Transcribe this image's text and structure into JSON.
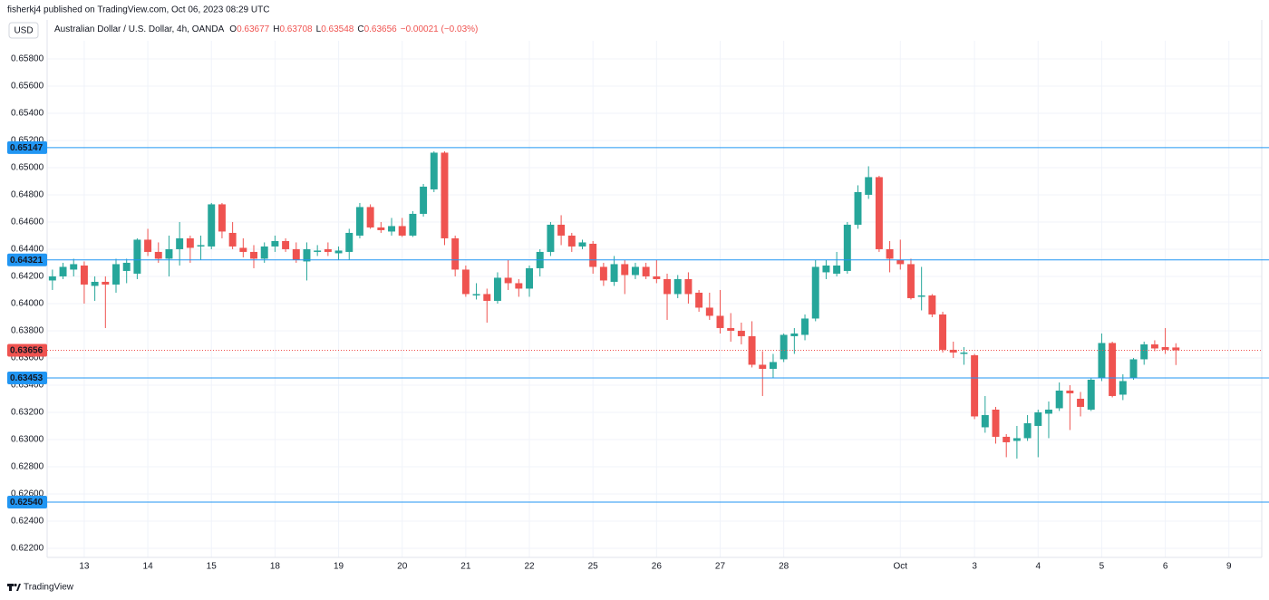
{
  "header": {
    "publisher": "fisherkj4 published on TradingView.com, Oct 06, 2023 08:29 UTC",
    "currency": "USD",
    "symbol": "Australian Dollar / U.S. Dollar, 4h, OANDA",
    "o_label": "O",
    "open": 0.63677,
    "h_label": "H",
    "high": 0.63708,
    "l_label": "L",
    "low": 0.63548,
    "c_label": "C",
    "close": 0.63656,
    "change": "−0.00021 (−0.03%)"
  },
  "footer": {
    "brand": "TradingView"
  },
  "chart_data": {
    "type": "candlestick",
    "open": [
      0.6417,
      0.642,
      0.6425,
      0.6428,
      0.6413,
      0.6416,
      0.6414,
      0.6424,
      0.6422,
      0.6447,
      0.6438,
      0.6433,
      0.644,
      0.6448,
      0.6442,
      0.6442,
      0.6473,
      0.6452,
      0.6441,
      0.6438,
      0.6433,
      0.6442,
      0.6446,
      0.644,
      0.6431,
      0.6438,
      0.644,
      0.6437,
      0.6438,
      0.645,
      0.6471,
      0.6456,
      0.6453,
      0.6457,
      0.645,
      0.6466,
      0.6484,
      0.6511,
      0.6448,
      0.6425,
      0.6406,
      0.6407,
      0.6402,
      0.6419,
      0.6415,
      0.6411,
      0.6426,
      0.6438,
      0.6458,
      0.645,
      0.6442,
      0.6444,
      0.6427,
      0.6416,
      0.6429,
      0.6421,
      0.6427,
      0.642,
      0.6418,
      0.6407,
      0.6418,
      0.6408,
      0.6397,
      0.6391,
      0.6382,
      0.638,
      0.6376,
      0.6355,
      0.6352,
      0.6359,
      0.6376,
      0.6377,
      0.6389,
      0.6423,
      0.6422,
      0.6424,
      0.6458,
      0.648,
      0.6493,
      0.644,
      0.6432,
      0.6429,
      0.6405,
      0.6406,
      0.6392,
      0.6366,
      0.6363,
      0.6362,
      0.6309,
      0.6322,
      0.6302,
      0.6299,
      0.6301,
      0.631,
      0.6319,
      0.6323,
      0.6336,
      0.633,
      0.6322,
      0.6345,
      0.6371,
      0.6333,
      0.6345,
      0.6359,
      0.637,
      0.6368,
      0.63677
    ],
    "high": [
      0.6425,
      0.643,
      0.6433,
      0.6431,
      0.642,
      0.642,
      0.6433,
      0.6433,
      0.6448,
      0.6455,
      0.6445,
      0.645,
      0.646,
      0.645,
      0.645,
      0.6474,
      0.6474,
      0.646,
      0.6448,
      0.6443,
      0.6445,
      0.645,
      0.6448,
      0.6445,
      0.6445,
      0.6443,
      0.6445,
      0.6442,
      0.6455,
      0.6474,
      0.6473,
      0.646,
      0.6463,
      0.6463,
      0.6468,
      0.6488,
      0.6512,
      0.6512,
      0.645,
      0.6428,
      0.6415,
      0.6411,
      0.6423,
      0.6432,
      0.6418,
      0.6428,
      0.644,
      0.646,
      0.6465,
      0.6452,
      0.6447,
      0.6446,
      0.643,
      0.6435,
      0.6432,
      0.643,
      0.643,
      0.6432,
      0.6422,
      0.6421,
      0.6423,
      0.641,
      0.6408,
      0.641,
      0.6393,
      0.6386,
      0.6387,
      0.6365,
      0.6363,
      0.6378,
      0.6382,
      0.6392,
      0.6432,
      0.6432,
      0.6438,
      0.646,
      0.6487,
      0.6501,
      0.6494,
      0.6446,
      0.6447,
      0.6433,
      0.6427,
      0.6407,
      0.6394,
      0.6372,
      0.6368,
      0.6363,
      0.6332,
      0.6324,
      0.6304,
      0.631,
      0.6318,
      0.6322,
      0.6328,
      0.6342,
      0.634,
      0.6335,
      0.6345,
      0.6378,
      0.6372,
      0.6348,
      0.636,
      0.6372,
      0.6373,
      0.6382,
      0.63708
    ],
    "low": [
      0.641,
      0.6418,
      0.642,
      0.64,
      0.6402,
      0.6382,
      0.6408,
      0.6415,
      0.6418,
      0.6435,
      0.643,
      0.642,
      0.6428,
      0.643,
      0.6432,
      0.644,
      0.6448,
      0.644,
      0.6434,
      0.6426,
      0.643,
      0.6438,
      0.6438,
      0.643,
      0.6417,
      0.6435,
      0.6435,
      0.6432,
      0.6432,
      0.6448,
      0.6455,
      0.6452,
      0.645,
      0.6449,
      0.6449,
      0.6464,
      0.6482,
      0.6443,
      0.642,
      0.6405,
      0.6403,
      0.6386,
      0.64,
      0.641,
      0.6405,
      0.6405,
      0.642,
      0.6435,
      0.6443,
      0.6438,
      0.644,
      0.6422,
      0.6413,
      0.6413,
      0.6407,
      0.6418,
      0.6418,
      0.6415,
      0.6388,
      0.6404,
      0.64,
      0.6394,
      0.6388,
      0.6378,
      0.6372,
      0.637,
      0.6353,
      0.6332,
      0.6345,
      0.6357,
      0.6363,
      0.6373,
      0.6387,
      0.6418,
      0.642,
      0.6422,
      0.6455,
      0.6477,
      0.6438,
      0.6423,
      0.6425,
      0.6403,
      0.6395,
      0.639,
      0.6364,
      0.636,
      0.6355,
      0.6315,
      0.6305,
      0.6297,
      0.6287,
      0.6286,
      0.6299,
      0.6287,
      0.6301,
      0.6321,
      0.6307,
      0.6317,
      0.6321,
      0.6343,
      0.6331,
      0.6329,
      0.6344,
      0.6355,
      0.6365,
      0.6363,
      0.63548
    ],
    "close": [
      0.642,
      0.6427,
      0.6429,
      0.6414,
      0.6416,
      0.6414,
      0.6429,
      0.643,
      0.6447,
      0.6438,
      0.6433,
      0.644,
      0.6448,
      0.6441,
      0.6443,
      0.6473,
      0.6453,
      0.6442,
      0.6438,
      0.6433,
      0.6442,
      0.6446,
      0.644,
      0.6432,
      0.644,
      0.6439,
      0.6438,
      0.6439,
      0.6452,
      0.6471,
      0.6456,
      0.6454,
      0.6457,
      0.645,
      0.6466,
      0.6486,
      0.6511,
      0.6448,
      0.6425,
      0.6407,
      0.6407,
      0.6402,
      0.6419,
      0.6415,
      0.6411,
      0.6426,
      0.6438,
      0.6458,
      0.645,
      0.6442,
      0.6445,
      0.6427,
      0.6417,
      0.6429,
      0.6421,
      0.6427,
      0.642,
      0.6418,
      0.6407,
      0.6418,
      0.6407,
      0.6397,
      0.6391,
      0.6382,
      0.638,
      0.6376,
      0.6355,
      0.6352,
      0.6357,
      0.6377,
      0.6378,
      0.6389,
      0.6427,
      0.6428,
      0.6428,
      0.6458,
      0.6482,
      0.6493,
      0.644,
      0.6433,
      0.6429,
      0.6404,
      0.6406,
      0.6392,
      0.6366,
      0.6364,
      0.6364,
      0.6317,
      0.6318,
      0.6302,
      0.6298,
      0.6301,
      0.6312,
      0.632,
      0.6322,
      0.6336,
      0.6334,
      0.6324,
      0.6344,
      0.6371,
      0.6332,
      0.6343,
      0.6359,
      0.637,
      0.6367,
      0.6366,
      0.63656
    ],
    "up_color": "#26a69a",
    "down_color": "#ef5350",
    "ylim": [
      0.62133,
      0.65933
    ],
    "yticks": [
      {
        "value": 0.622,
        "label": "0.62200"
      },
      {
        "value": 0.624,
        "label": "0.62400"
      },
      {
        "value": 0.626,
        "label": "0.62600"
      },
      {
        "value": 0.628,
        "label": "0.62800"
      },
      {
        "value": 0.63,
        "label": "0.63000"
      },
      {
        "value": 0.632,
        "label": "0.63200"
      },
      {
        "value": 0.634,
        "label": "0.63400"
      },
      {
        "value": 0.636,
        "label": "0.63600"
      },
      {
        "value": 0.638,
        "label": "0.63800"
      },
      {
        "value": 0.64,
        "label": "0.64000"
      },
      {
        "value": 0.642,
        "label": "0.64200"
      },
      {
        "value": 0.644,
        "label": "0.64400"
      },
      {
        "value": 0.646,
        "label": "0.64600"
      },
      {
        "value": 0.648,
        "label": "0.64800"
      },
      {
        "value": 0.65,
        "label": "0.65000"
      },
      {
        "value": 0.652,
        "label": "0.65200"
      },
      {
        "value": 0.654,
        "label": "0.65400"
      },
      {
        "value": 0.656,
        "label": "0.65600"
      },
      {
        "value": 0.658,
        "label": "0.65800"
      }
    ],
    "xlim": [
      -0.5,
      114.1
    ],
    "xticks": [
      {
        "value": 3,
        "label": "13"
      },
      {
        "value": 9,
        "label": "14"
      },
      {
        "value": 15,
        "label": "15"
      },
      {
        "value": 21,
        "label": "18"
      },
      {
        "value": 27,
        "label": "19"
      },
      {
        "value": 33,
        "label": "20"
      },
      {
        "value": 39,
        "label": "21"
      },
      {
        "value": 45,
        "label": "22"
      },
      {
        "value": 51,
        "label": "25"
      },
      {
        "value": 57,
        "label": "26"
      },
      {
        "value": 63,
        "label": "27"
      },
      {
        "value": 69,
        "label": "28"
      },
      {
        "value": 80,
        "label": "Oct"
      },
      {
        "value": 87,
        "label": "3"
      },
      {
        "value": 93,
        "label": "4"
      },
      {
        "value": 99,
        "label": "5"
      },
      {
        "value": 105,
        "label": "6"
      },
      {
        "value": 111,
        "label": "9"
      }
    ],
    "grid": true,
    "levels": [
      {
        "value": 0.65147,
        "label": "0.65147"
      },
      {
        "value": 0.64321,
        "label": "0.64321"
      },
      {
        "value": 0.63453,
        "label": "0.63453"
      },
      {
        "value": 0.6254,
        "label": "0.62540"
      }
    ],
    "level_color": "#2196f3",
    "last_price": {
      "value": 0.63656,
      "label": "0.63656"
    },
    "last_price_color": "#ef5350"
  }
}
